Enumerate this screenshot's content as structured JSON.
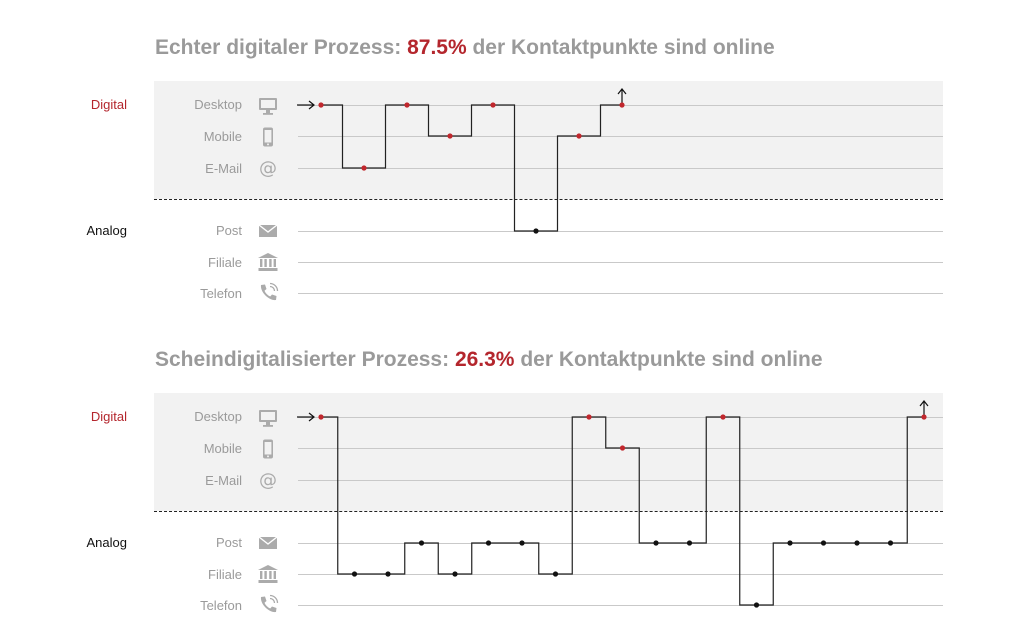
{
  "groups": {
    "digital": "Digital",
    "analog": "Analog"
  },
  "channels": [
    {
      "label": "Desktop",
      "icon": "desktop-icon",
      "group": "digital"
    },
    {
      "label": "Mobile",
      "icon": "mobile-icon",
      "group": "digital"
    },
    {
      "label": "E-Mail",
      "icon": "email-icon",
      "group": "digital"
    },
    {
      "label": "Post",
      "icon": "mail-envelope-icon",
      "group": "analog"
    },
    {
      "label": "Filiale",
      "icon": "bank-branch-icon",
      "group": "analog"
    },
    {
      "label": "Telefon",
      "icon": "phone-icon",
      "group": "analog"
    }
  ],
  "colors": {
    "digital_dot": "#c1272d",
    "analog_dot": "#111111",
    "title_gray": "#9a9a9a",
    "highlight": "#b4262d",
    "band": "#f2f2f2"
  },
  "diagrams": [
    {
      "title_prefix": "Echter digitaler Prozess: ",
      "title_percent": "87.5%",
      "title_suffix": " der Kontaktpunkte sind online",
      "touchpoints": [
        {
          "channel": "Desktop"
        },
        {
          "channel": "E-Mail"
        },
        {
          "channel": "Desktop"
        },
        {
          "channel": "Mobile"
        },
        {
          "channel": "Desktop"
        },
        {
          "channel": "Post"
        },
        {
          "channel": "Mobile"
        },
        {
          "channel": "Desktop"
        }
      ]
    },
    {
      "title_prefix": "Scheindigitalisierter Prozess: ",
      "title_percent": "26.3%",
      "title_suffix": " der Kontaktpunkte sind online",
      "touchpoints": [
        {
          "channel": "Desktop"
        },
        {
          "channel": "Filiale"
        },
        {
          "channel": "Filiale"
        },
        {
          "channel": "Post"
        },
        {
          "channel": "Filiale"
        },
        {
          "channel": "Post"
        },
        {
          "channel": "Post"
        },
        {
          "channel": "Filiale"
        },
        {
          "channel": "Desktop"
        },
        {
          "channel": "Mobile"
        },
        {
          "channel": "Post"
        },
        {
          "channel": "Post"
        },
        {
          "channel": "Desktop"
        },
        {
          "channel": "Telefon"
        },
        {
          "channel": "Post"
        },
        {
          "channel": "Post"
        },
        {
          "channel": "Post"
        },
        {
          "channel": "Post"
        },
        {
          "channel": "Desktop"
        }
      ]
    }
  ]
}
